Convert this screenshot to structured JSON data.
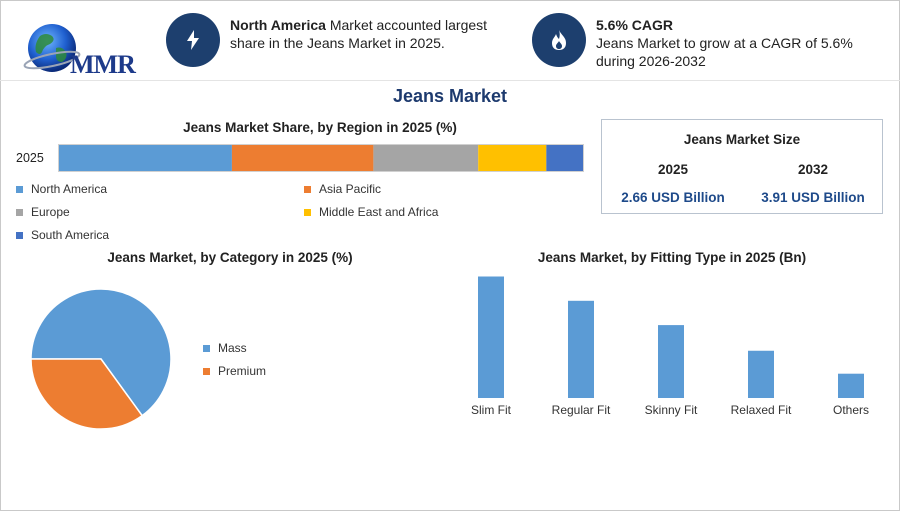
{
  "brand": {
    "logo_text": "MMR"
  },
  "highlights": [
    {
      "bold": "North America",
      "text": " Market accounted largest share in the Jeans Market in 2025.",
      "icon": "lightning-icon"
    },
    {
      "bold": "5.6% CAGR",
      "text": "Jeans Market to grow at a CAGR of 5.6% during 2026-2032",
      "icon": "flame-icon"
    }
  ],
  "page_title": "Jeans Market",
  "market_size": {
    "title": "Jeans Market Size",
    "year_a": "2025",
    "year_b": "2032",
    "value_a": "2.66 USD Billion",
    "value_b": "3.91 USD Billion"
  },
  "colors": {
    "accent": "#1d3f6e",
    "blue": "#5b9bd5",
    "orange": "#ed7d31",
    "gray": "#a5a5a5",
    "yellow": "#ffc000",
    "dark_blue": "#4472c4"
  },
  "chart_data": [
    {
      "type": "bar",
      "orientation": "horizontal-stacked",
      "title": "Jeans Market Share, by Region in 2025 (%)",
      "categories": [
        "2025"
      ],
      "series": [
        {
          "name": "North America",
          "values": [
            33
          ],
          "color": "#5b9bd5"
        },
        {
          "name": "Asia Pacific",
          "values": [
            27
          ],
          "color": "#ed7d31"
        },
        {
          "name": "Europe",
          "values": [
            20
          ],
          "color": "#a5a5a5"
        },
        {
          "name": "Middle East and Africa",
          "values": [
            13
          ],
          "color": "#ffc000"
        },
        {
          "name": "South America",
          "values": [
            7
          ],
          "color": "#4472c4"
        }
      ]
    },
    {
      "type": "pie",
      "title": "Jeans Market, by Category in 2025 (%)",
      "labels": [
        "Mass",
        "Premium"
      ],
      "values": [
        65,
        35
      ],
      "colors": [
        "#5b9bd5",
        "#ed7d31"
      ],
      "legend": "right"
    },
    {
      "type": "bar",
      "title": "Jeans Market, by Fitting Type in 2025 (Bn)",
      "categories": [
        "Slim Fit",
        "Regular Fit",
        "Skinny Fit",
        "Relaxed Fit",
        "Others"
      ],
      "values": [
        0.9,
        0.72,
        0.54,
        0.35,
        0.18
      ],
      "color": "#5b9bd5",
      "ylim": [
        0,
        1.0
      ],
      "grid": false
    }
  ]
}
